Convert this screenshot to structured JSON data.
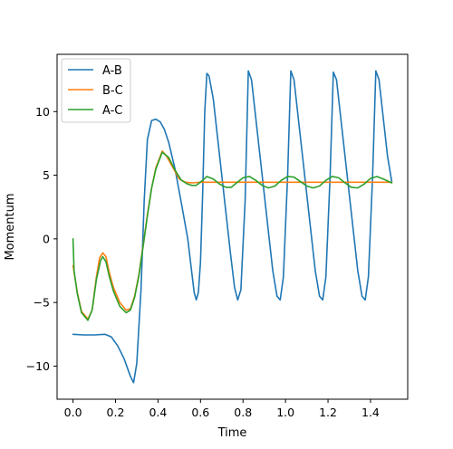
{
  "chart_data": {
    "type": "line",
    "title": "",
    "xlabel": "Time",
    "ylabel": "Momentum",
    "xlim": [
      -0.075,
      1.575
    ],
    "ylim": [
      -12.6,
      14.5
    ],
    "xticks": [
      0.0,
      0.2,
      0.4,
      0.6,
      0.8,
      1.0,
      1.2,
      1.4
    ],
    "xtick_labels": [
      "0.0",
      "0.2",
      "0.4",
      "0.6",
      "0.8",
      "1.0",
      "1.2",
      "1.4"
    ],
    "yticks": [
      -10,
      -5,
      0,
      5,
      10
    ],
    "ytick_labels": [
      "−10",
      "−5",
      "0",
      "5",
      "10"
    ],
    "grid": false,
    "legend_position": "top-left",
    "series": [
      {
        "name": "A-B",
        "color": "#1f77b4",
        "points": [
          [
            0.0,
            -7.5
          ],
          [
            0.05,
            -7.55
          ],
          [
            0.1,
            -7.55
          ],
          [
            0.15,
            -7.5
          ],
          [
            0.18,
            -7.7
          ],
          [
            0.21,
            -8.4
          ],
          [
            0.24,
            -9.4
          ],
          [
            0.27,
            -10.8
          ],
          [
            0.285,
            -11.3
          ],
          [
            0.3,
            -9.8
          ],
          [
            0.32,
            -4.0
          ],
          [
            0.335,
            3.0
          ],
          [
            0.35,
            7.8
          ],
          [
            0.37,
            9.3
          ],
          [
            0.39,
            9.4
          ],
          [
            0.41,
            9.2
          ],
          [
            0.43,
            8.6
          ],
          [
            0.45,
            7.6
          ],
          [
            0.48,
            5.5
          ],
          [
            0.51,
            2.8
          ],
          [
            0.54,
            0.0
          ],
          [
            0.56,
            -2.8
          ],
          [
            0.57,
            -4.2
          ],
          [
            0.58,
            -4.8
          ],
          [
            0.59,
            -4.2
          ],
          [
            0.6,
            -1.8
          ],
          [
            0.61,
            3.5
          ],
          [
            0.62,
            10.0
          ],
          [
            0.63,
            13.0
          ],
          [
            0.64,
            12.8
          ],
          [
            0.66,
            11.0
          ],
          [
            0.68,
            8.0
          ],
          [
            0.7,
            5.0
          ],
          [
            0.72,
            2.0
          ],
          [
            0.74,
            -1.0
          ],
          [
            0.76,
            -3.8
          ],
          [
            0.775,
            -4.8
          ],
          [
            0.79,
            -4.0
          ],
          [
            0.81,
            3.0
          ],
          [
            0.825,
            13.2
          ],
          [
            0.84,
            12.5
          ],
          [
            0.86,
            9.5
          ],
          [
            0.88,
            6.5
          ],
          [
            0.9,
            3.5
          ],
          [
            0.92,
            0.5
          ],
          [
            0.94,
            -2.5
          ],
          [
            0.96,
            -4.5
          ],
          [
            0.975,
            -4.8
          ],
          [
            0.99,
            -3.0
          ],
          [
            1.01,
            5.0
          ],
          [
            1.025,
            13.2
          ],
          [
            1.04,
            12.5
          ],
          [
            1.06,
            9.5
          ],
          [
            1.08,
            6.5
          ],
          [
            1.1,
            3.5
          ],
          [
            1.12,
            0.5
          ],
          [
            1.14,
            -2.5
          ],
          [
            1.16,
            -4.5
          ],
          [
            1.175,
            -4.8
          ],
          [
            1.19,
            -3.0
          ],
          [
            1.21,
            5.0
          ],
          [
            1.225,
            13.1
          ],
          [
            1.24,
            12.5
          ],
          [
            1.26,
            9.5
          ],
          [
            1.28,
            6.5
          ],
          [
            1.3,
            3.5
          ],
          [
            1.32,
            0.5
          ],
          [
            1.34,
            -2.5
          ],
          [
            1.36,
            -4.5
          ],
          [
            1.375,
            -4.8
          ],
          [
            1.39,
            -3.0
          ],
          [
            1.41,
            5.0
          ],
          [
            1.425,
            13.2
          ],
          [
            1.44,
            12.5
          ],
          [
            1.46,
            9.5
          ],
          [
            1.48,
            6.5
          ],
          [
            1.5,
            4.5
          ]
        ]
      },
      {
        "name": "B-C",
        "color": "#ff7f0e",
        "points": [
          [
            0.0,
            -2.1
          ],
          [
            0.02,
            -4.2
          ],
          [
            0.04,
            -5.7
          ],
          [
            0.07,
            -6.3
          ],
          [
            0.09,
            -5.6
          ],
          [
            0.11,
            -3.0
          ],
          [
            0.125,
            -1.5
          ],
          [
            0.14,
            -1.1
          ],
          [
            0.155,
            -1.4
          ],
          [
            0.17,
            -2.6
          ],
          [
            0.19,
            -3.8
          ],
          [
            0.22,
            -5.0
          ],
          [
            0.25,
            -5.6
          ],
          [
            0.27,
            -5.5
          ],
          [
            0.29,
            -4.5
          ],
          [
            0.31,
            -2.8
          ],
          [
            0.33,
            -0.5
          ],
          [
            0.35,
            1.9
          ],
          [
            0.37,
            4.0
          ],
          [
            0.39,
            5.6
          ],
          [
            0.42,
            6.9
          ],
          [
            0.44,
            6.5
          ],
          [
            0.47,
            5.6
          ],
          [
            0.5,
            4.7
          ],
          [
            0.53,
            4.45
          ],
          [
            0.56,
            4.4
          ],
          [
            0.6,
            4.45
          ],
          [
            1.5,
            4.45
          ]
        ]
      },
      {
        "name": "A-C",
        "color": "#2ca02c",
        "points": [
          [
            0.0,
            0.0
          ],
          [
            0.005,
            -2.5
          ],
          [
            0.02,
            -4.3
          ],
          [
            0.04,
            -5.8
          ],
          [
            0.07,
            -6.4
          ],
          [
            0.09,
            -5.6
          ],
          [
            0.11,
            -3.2
          ],
          [
            0.13,
            -1.7
          ],
          [
            0.14,
            -1.4
          ],
          [
            0.155,
            -1.8
          ],
          [
            0.17,
            -2.9
          ],
          [
            0.19,
            -4.1
          ],
          [
            0.22,
            -5.3
          ],
          [
            0.25,
            -5.8
          ],
          [
            0.27,
            -5.6
          ],
          [
            0.29,
            -4.6
          ],
          [
            0.31,
            -2.9
          ],
          [
            0.33,
            -0.6
          ],
          [
            0.35,
            1.8
          ],
          [
            0.37,
            4.0
          ],
          [
            0.39,
            5.5
          ],
          [
            0.42,
            6.8
          ],
          [
            0.45,
            6.4
          ],
          [
            0.48,
            5.4
          ],
          [
            0.51,
            4.6
          ],
          [
            0.54,
            4.3
          ],
          [
            0.56,
            4.2
          ],
          [
            0.58,
            4.2
          ],
          [
            0.61,
            4.6
          ],
          [
            0.63,
            4.9
          ],
          [
            0.66,
            4.7
          ],
          [
            0.69,
            4.3
          ],
          [
            0.72,
            4.05
          ],
          [
            0.745,
            4.05
          ],
          [
            0.77,
            4.4
          ],
          [
            0.8,
            4.8
          ],
          [
            0.83,
            4.9
          ],
          [
            0.86,
            4.6
          ],
          [
            0.89,
            4.2
          ],
          [
            0.92,
            4.0
          ],
          [
            0.95,
            4.15
          ],
          [
            0.98,
            4.6
          ],
          [
            1.01,
            4.9
          ],
          [
            1.04,
            4.85
          ],
          [
            1.07,
            4.5
          ],
          [
            1.1,
            4.15
          ],
          [
            1.13,
            4.0
          ],
          [
            1.16,
            4.15
          ],
          [
            1.19,
            4.6
          ],
          [
            1.22,
            4.9
          ],
          [
            1.25,
            4.8
          ],
          [
            1.28,
            4.4
          ],
          [
            1.31,
            4.05
          ],
          [
            1.34,
            4.0
          ],
          [
            1.37,
            4.3
          ],
          [
            1.4,
            4.75
          ],
          [
            1.43,
            4.9
          ],
          [
            1.46,
            4.7
          ],
          [
            1.5,
            4.4
          ]
        ]
      }
    ]
  }
}
